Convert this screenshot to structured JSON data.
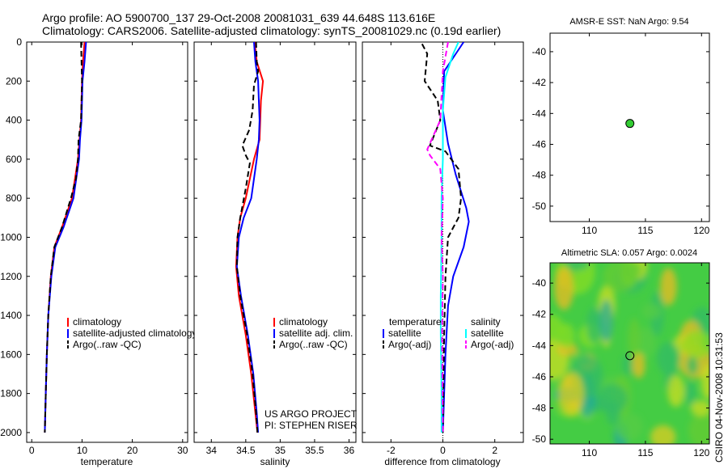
{
  "header": {
    "line1": "Argo profile: AO 5900700_137 29-Oct-2008 20081031_639 44.648S 113.616E",
    "line2": "Climatology: CARS2006. Satellite-adjusted climatology: synTS_20081029.nc (0.19d earlier)"
  },
  "side_text": "CSIRO 04-Nov-2008 10:31:53",
  "credit": {
    "line1": "US ARGO PROJECT",
    "line2": "PI: STEPHEN RISER"
  },
  "colors": {
    "red": "#ff0000",
    "blue": "#0000ff",
    "black": "#000000",
    "cyan": "#00ffff",
    "magenta": "#ff00ff",
    "dot": "#33cc33"
  },
  "chart_data": [
    {
      "type": "line",
      "xlabel": "temperature",
      "ylabel": "",
      "xlim": [
        -1,
        31
      ],
      "ylim": [
        0,
        2050
      ],
      "y_reversed": true,
      "xticks": [
        0,
        10,
        20,
        30
      ],
      "yticks": [
        0,
        200,
        400,
        600,
        800,
        1000,
        1200,
        1400,
        1600,
        1800,
        2000
      ],
      "legend": [
        "climatology",
        "satellite-adjusted climatology",
        "Argo(..raw -QC)"
      ],
      "series": [
        {
          "name": "climatology",
          "color": "red",
          "dash": false,
          "points": [
            [
              10.5,
              0
            ],
            [
              10.2,
              100
            ],
            [
              10,
              200
            ],
            [
              9.8,
              400
            ],
            [
              9.5,
              500
            ],
            [
              9.2,
              600
            ],
            [
              8,
              800
            ],
            [
              6,
              950
            ],
            [
              4.5,
              1050
            ],
            [
              3.8,
              1200
            ],
            [
              3.3,
              1400
            ],
            [
              3.0,
              1600
            ],
            [
              2.8,
              1800
            ],
            [
              2.6,
              2000
            ]
          ]
        },
        {
          "name": "satellite-adjusted climatology",
          "color": "blue",
          "dash": false,
          "points": [
            [
              10.8,
              0
            ],
            [
              10.5,
              100
            ],
            [
              10.1,
              200
            ],
            [
              9.9,
              400
            ],
            [
              9.6,
              500
            ],
            [
              9.4,
              600
            ],
            [
              8.3,
              800
            ],
            [
              6.3,
              950
            ],
            [
              4.7,
              1050
            ],
            [
              3.9,
              1200
            ],
            [
              3.3,
              1400
            ],
            [
              3.0,
              1600
            ],
            [
              2.8,
              1800
            ],
            [
              2.6,
              2000
            ]
          ]
        },
        {
          "name": "Argo(..raw -QC)",
          "color": "black",
          "dash": true,
          "points": [
            [
              9.8,
              0
            ],
            [
              9.9,
              100
            ],
            [
              10,
              200
            ],
            [
              9.8,
              400
            ],
            [
              9.3,
              500
            ],
            [
              9.2,
              600
            ],
            [
              8.8,
              700
            ],
            [
              7.8,
              800
            ],
            [
              6,
              950
            ],
            [
              4.5,
              1050
            ],
            [
              3.8,
              1200
            ],
            [
              3.3,
              1400
            ],
            [
              3.0,
              1600
            ],
            [
              2.8,
              1800
            ],
            [
              2.6,
              2000
            ]
          ]
        }
      ]
    },
    {
      "type": "line",
      "xlabel": "salinity",
      "ylabel": "",
      "xlim": [
        33.75,
        36.1
      ],
      "ylim": [
        0,
        2050
      ],
      "y_reversed": true,
      "xticks": [
        34,
        34.5,
        35,
        35.5,
        36
      ],
      "xticklabels": [
        "34",
        "34.5",
        "35",
        "35.5",
        "36"
      ],
      "yticks": [
        0,
        200,
        400,
        600,
        800,
        1000,
        1200,
        1400,
        1600,
        1800,
        2000
      ],
      "legend": [
        "climatology",
        "satellite adj. clim.",
        "Argo(..raw -QC)"
      ],
      "series": [
        {
          "name": "climatology",
          "color": "red",
          "dash": false,
          "points": [
            [
              34.63,
              0
            ],
            [
              34.66,
              100
            ],
            [
              34.75,
              200
            ],
            [
              34.72,
              300
            ],
            [
              34.7,
              500
            ],
            [
              34.62,
              600
            ],
            [
              34.5,
              800
            ],
            [
              34.42,
              900
            ],
            [
              34.38,
              1000
            ],
            [
              34.36,
              1150
            ],
            [
              34.4,
              1300
            ],
            [
              34.5,
              1500
            ],
            [
              34.58,
              1700
            ],
            [
              34.64,
              1900
            ],
            [
              34.67,
              2000
            ]
          ]
        },
        {
          "name": "satellite adj. clim.",
          "color": "blue",
          "dash": false,
          "points": [
            [
              34.62,
              0
            ],
            [
              34.64,
              100
            ],
            [
              34.68,
              200
            ],
            [
              34.7,
              400
            ],
            [
              34.69,
              500
            ],
            [
              34.66,
              600
            ],
            [
              34.58,
              800
            ],
            [
              34.47,
              900
            ],
            [
              34.4,
              1000
            ],
            [
              34.37,
              1150
            ],
            [
              34.43,
              1300
            ],
            [
              34.53,
              1500
            ],
            [
              34.61,
              1700
            ],
            [
              34.66,
              1900
            ],
            [
              34.68,
              2000
            ]
          ]
        },
        {
          "name": "Argo(..raw -QC)",
          "color": "black",
          "dash": true,
          "points": [
            [
              34.65,
              0
            ],
            [
              34.66,
              100
            ],
            [
              34.68,
              150
            ],
            [
              34.62,
              220
            ],
            [
              34.6,
              350
            ],
            [
              34.55,
              450
            ],
            [
              34.45,
              530
            ],
            [
              34.5,
              580
            ],
            [
              34.56,
              620
            ],
            [
              34.5,
              750
            ],
            [
              34.42,
              900
            ],
            [
              34.38,
              1000
            ],
            [
              34.37,
              1150
            ],
            [
              34.42,
              1300
            ],
            [
              34.52,
              1500
            ],
            [
              34.6,
              1700
            ],
            [
              34.65,
              1900
            ],
            [
              34.67,
              2000
            ]
          ]
        }
      ]
    },
    {
      "type": "line",
      "xlabel": "difference from climatology",
      "ylabel": "",
      "xlim": [
        -3.1,
        3.1
      ],
      "ylim": [
        0,
        2050
      ],
      "y_reversed": true,
      "xticks": [
        -2,
        0,
        2
      ],
      "yticks": [
        0,
        200,
        400,
        600,
        800,
        1000,
        1200,
        1400,
        1600,
        1800,
        2000
      ],
      "legend_headers": [
        "temperature",
        "salinity"
      ],
      "legend": [
        "satellite",
        "Argo(-adj)",
        "satellite",
        "Argo(-adj)"
      ],
      "series": [
        {
          "name": "satellite",
          "group": "temperature",
          "color": "blue",
          "dash": false,
          "points": [
            [
              0.8,
              0
            ],
            [
              0.5,
              60
            ],
            [
              0.05,
              150
            ],
            [
              0,
              350
            ],
            [
              0.2,
              520
            ],
            [
              0.5,
              680
            ],
            [
              0.9,
              850
            ],
            [
              1.0,
              920
            ],
            [
              0.8,
              1050
            ],
            [
              0.4,
              1200
            ],
            [
              0.2,
              1350
            ],
            [
              0.1,
              1600
            ],
            [
              0.05,
              1800
            ],
            [
              0,
              2000
            ]
          ]
        },
        {
          "name": "Argo(-adj)",
          "group": "temperature",
          "color": "black",
          "dash": true,
          "points": [
            [
              -0.8,
              10
            ],
            [
              -0.6,
              60
            ],
            [
              -0.7,
              200
            ],
            [
              -0.2,
              300
            ],
            [
              -0.1,
              400
            ],
            [
              -0.5,
              530
            ],
            [
              0.1,
              560
            ],
            [
              0.6,
              650
            ],
            [
              0.7,
              800
            ],
            [
              0.6,
              900
            ],
            [
              0.4,
              950
            ],
            [
              0.2,
              1000
            ],
            [
              0.1,
              1200
            ],
            [
              0.05,
              1500
            ],
            [
              0.02,
              1800
            ],
            [
              0,
              2000
            ]
          ]
        },
        {
          "name": "satellite",
          "group": "salinity",
          "color": "cyan",
          "dash": false,
          "points": [
            [
              0.6,
              0
            ],
            [
              0.4,
              60
            ],
            [
              0.1,
              180
            ],
            [
              0,
              350
            ],
            [
              0,
              600
            ],
            [
              -0.05,
              800
            ],
            [
              -0.05,
              1000
            ],
            [
              -0.08,
              1300
            ],
            [
              -0.08,
              1500
            ],
            [
              -0.05,
              1800
            ],
            [
              -0.05,
              2000
            ]
          ]
        },
        {
          "name": "Argo(-adj)",
          "group": "salinity",
          "color": "magenta",
          "dash": true,
          "points": [
            [
              0.2,
              0
            ],
            [
              0,
              150
            ],
            [
              -0.1,
              400
            ],
            [
              -0.6,
              550
            ],
            [
              -0.5,
              580
            ],
            [
              -0.1,
              650
            ],
            [
              0,
              800
            ],
            [
              -0.05,
              1000
            ],
            [
              0,
              1200
            ],
            [
              -0.03,
              1500
            ],
            [
              0,
              2000
            ]
          ]
        }
      ]
    },
    {
      "type": "scatter",
      "title": "AMSR-E SST: NaN Argo: 9.54",
      "xlim": [
        106.5,
        120.7
      ],
      "ylim": [
        -51,
        -38.8
      ],
      "xticks": [
        110,
        115,
        120
      ],
      "yticks": [
        -40,
        -42,
        -44,
        -46,
        -48,
        -50
      ],
      "points": [
        [
          113.616,
          -44.648
        ]
      ]
    },
    {
      "type": "heatmap",
      "title": "Altimetric SLA: 0.057  Argo: 0.0024",
      "xlim": [
        106.5,
        120.7
      ],
      "ylim": [
        -50.3,
        -38.7
      ],
      "xticks": [
        110,
        115,
        120
      ],
      "yticks": [
        -40,
        -42,
        -44,
        -46,
        -48,
        -50
      ],
      "points": [
        [
          113.616,
          -44.648
        ]
      ]
    }
  ]
}
